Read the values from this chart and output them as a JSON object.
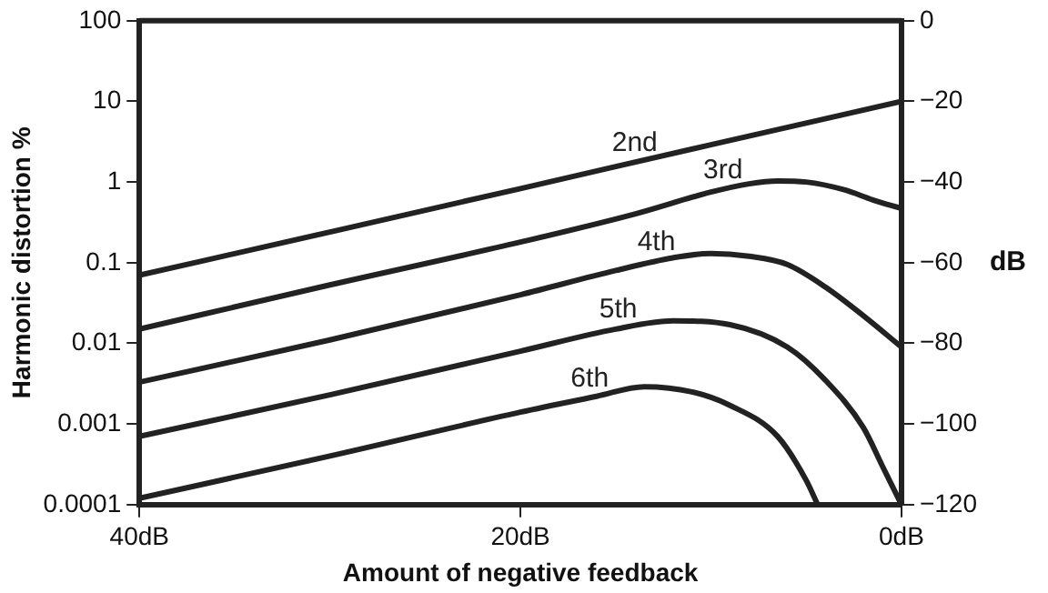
{
  "chart_data": {
    "type": "line",
    "xlabel": "Amount of negative feedback",
    "ylabel": "Harmonic distortion %",
    "y2label": "dB",
    "xlim": [
      40,
      0
    ],
    "xticks": [
      {
        "value": 40,
        "label": "40dB"
      },
      {
        "value": 20,
        "label": "20dB"
      },
      {
        "value": 0,
        "label": "0dB"
      }
    ],
    "ylim": [
      0.0001,
      100
    ],
    "yticks": [
      100,
      10,
      1,
      0.1,
      0.01,
      0.001,
      0.0001
    ],
    "log": "y",
    "y2lim": [
      -120,
      0
    ],
    "y2ticks": [
      0,
      -20,
      -40,
      -60,
      -80,
      -100,
      -120
    ],
    "grid": false,
    "legend": false,
    "marker": "none",
    "line_style": "solid",
    "series": [
      {
        "name": "2nd",
        "color": "#222222",
        "x": [
          40,
          30,
          20,
          10,
          0
        ],
        "values": [
          0.07,
          0.24,
          0.83,
          2.9,
          10
        ]
      },
      {
        "name": "3rd",
        "color": "#222222",
        "x": [
          40,
          30,
          20,
          14,
          10,
          8,
          6.5,
          5,
          3,
          1.5,
          0
        ],
        "values": [
          0.015,
          0.053,
          0.18,
          0.4,
          0.75,
          0.95,
          1.03,
          1,
          0.8,
          0.6,
          0.47
        ]
      },
      {
        "name": "4th",
        "color": "#222222",
        "x": [
          40,
          30,
          20,
          15,
          12,
          10,
          8,
          6,
          4,
          2,
          0
        ],
        "values": [
          0.0033,
          0.011,
          0.04,
          0.08,
          0.115,
          0.13,
          0.12,
          0.095,
          0.05,
          0.022,
          0.009
        ]
      },
      {
        "name": "5th",
        "color": "#222222",
        "x": [
          40,
          30,
          20,
          15,
          12,
          9,
          6,
          4,
          2,
          1,
          0
        ],
        "values": [
          0.0007,
          0.0023,
          0.008,
          0.015,
          0.019,
          0.017,
          0.009,
          0.0035,
          0.0009,
          0.0003,
          0.0001
        ]
      },
      {
        "name": "6th",
        "color": "#222222",
        "x": [
          40,
          30,
          20,
          16,
          13.5,
          11,
          9,
          6.5,
          5,
          4.4
        ],
        "values": [
          0.00012,
          0.0004,
          0.0014,
          0.0022,
          0.0029,
          0.0025,
          0.0017,
          0.0007,
          0.0002,
          0.0001
        ]
      }
    ]
  }
}
